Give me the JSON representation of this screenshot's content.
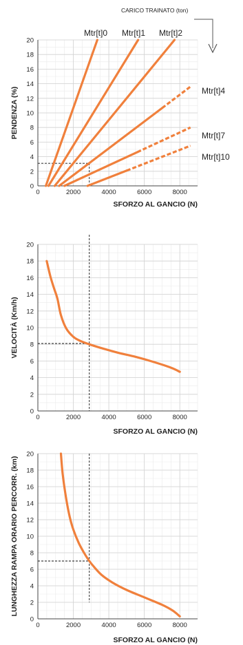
{
  "header": {
    "label": "CARICO TRAINATO (ton)"
  },
  "colors": {
    "curve": "#f0803c",
    "grid_minor": "#eaeaea",
    "grid_major": "#d2d2d2",
    "guide": "#111111"
  },
  "chart_data": [
    {
      "type": "line",
      "title": "",
      "xlabel": "SFORZO AL GANCIO (N)",
      "ylabel": "PENDENZA (%)",
      "xlim": [
        0,
        9000
      ],
      "ylim": [
        0,
        20
      ],
      "xticks": [
        0,
        2000,
        4000,
        6000,
        8000
      ],
      "yticks": [
        0,
        2,
        4,
        6,
        8,
        10,
        12,
        14,
        16,
        18,
        20
      ],
      "grid": true,
      "guide": {
        "x": 2900,
        "y": 3.1
      },
      "series": [
        {
          "name": "Mtr[t]0",
          "x": [
            450,
            3350
          ],
          "y": [
            0,
            20
          ],
          "dashed_from_x": null
        },
        {
          "name": "Mtr[t]1",
          "x": [
            600,
            5650
          ],
          "y": [
            0,
            20
          ],
          "dashed_from_x": null
        },
        {
          "name": "Mtr[t]2",
          "x": [
            950,
            7700
          ],
          "y": [
            0,
            20
          ],
          "dashed_from_x": null
        },
        {
          "name": "Mtr[t]4",
          "x": [
            1200,
            8600
          ],
          "y": [
            0,
            13.6
          ],
          "dashed_from_x": 7000
        },
        {
          "name": "Mtr[t]7",
          "x": [
            1500,
            8600
          ],
          "y": [
            0,
            8.0
          ],
          "dashed_from_x": 5600
        },
        {
          "name": "Mtr[t]10",
          "x": [
            2800,
            8600
          ],
          "y": [
            0,
            5.5
          ],
          "dashed_from_x": 5000
        }
      ]
    },
    {
      "type": "line",
      "title": "",
      "xlabel": "SFORZO AL GANCIO (N)",
      "ylabel": "VELOCITÀ (Km/h)",
      "xlim": [
        0,
        9000
      ],
      "ylim": [
        0,
        20
      ],
      "xticks": [
        0,
        2000,
        4000,
        6000,
        8000
      ],
      "yticks": [
        0,
        2,
        4,
        6,
        8,
        10,
        12,
        14,
        16,
        18,
        20
      ],
      "grid": true,
      "guide": {
        "x": 2900,
        "y": 8.1
      },
      "series": [
        {
          "x": [
            500,
            700,
            900,
            1100,
            1300,
            1600,
            2000,
            2400,
            2900,
            3500,
            4500,
            5500,
            6500,
            7500,
            8000
          ],
          "y": [
            18.0,
            16.2,
            14.8,
            13.5,
            11.5,
            9.9,
            8.9,
            8.4,
            8.0,
            7.6,
            7.0,
            6.5,
            5.9,
            5.2,
            4.7
          ]
        }
      ]
    },
    {
      "type": "line",
      "title": "",
      "xlabel": "SFORZO AL GANCIO (N)",
      "ylabel": "LUNGHEZZA RAMPA ORARIO PERCORR. (km)",
      "xlim": [
        0,
        9000
      ],
      "ylim": [
        0,
        20
      ],
      "xticks": [
        0,
        2000,
        4000,
        6000,
        8000
      ],
      "yticks": [
        0,
        2,
        4,
        6,
        8,
        10,
        12,
        14,
        16,
        18,
        20
      ],
      "grid": true,
      "guide": {
        "x": 2900,
        "y": 7.0
      },
      "series": [
        {
          "x": [
            1300,
            1400,
            1600,
            1800,
            2000,
            2300,
            2600,
            2900,
            3200,
            3600,
            4200,
            5000,
            6000,
            7000,
            7600,
            8000
          ],
          "y": [
            20.0,
            17.5,
            14.5,
            12.3,
            10.8,
            9.2,
            8.0,
            7.0,
            6.2,
            5.3,
            4.4,
            3.5,
            2.6,
            1.7,
            1.0,
            0.3
          ]
        }
      ]
    }
  ]
}
